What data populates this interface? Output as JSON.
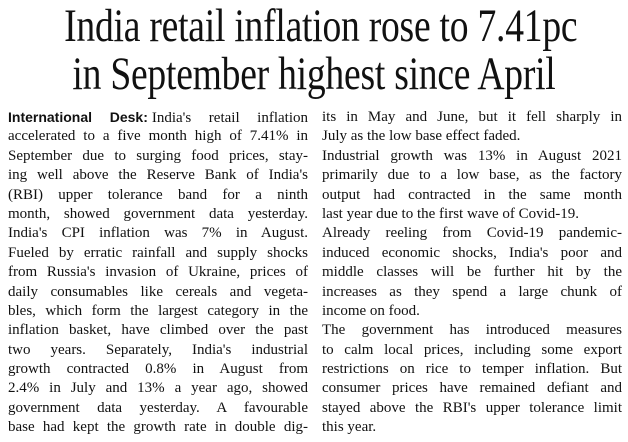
{
  "headline": {
    "lines": [
      "India retail inflation rose to 7.41pc",
      "in September highest since April"
    ]
  },
  "columns": [
    {
      "lead": "International Desk:",
      "paragraphs": [
        {
          "lines": [
            "India's retail inflation",
            "accelerated to a five month high of 7.41% in",
            "September due to surging food prices, stay-",
            "ing well above the Reserve Bank of India's",
            "(RBI) upper tolerance band for a ninth",
            "month, showed government data yesterday.",
            "India's CPI inflation was 7% in August.",
            "Fueled by erratic rainfall and supply shocks",
            "from Russia's invasion of Ukraine, prices of",
            "daily consumables like cereals and vegeta-",
            "bles, which form the largest category in the",
            "inflation basket, have climbed over the past",
            "two years. Separately, India's industrial",
            "growth contracted 0.8% in August from",
            "2.4% in July and 13% a year ago, showed",
            "government data yesterday. A favourable",
            "base had kept the growth rate in double dig-"
          ]
        }
      ]
    },
    {
      "paragraphs": [
        {
          "lines": [
            "its in May and June, but it fell sharply in",
            "July as the low base effect faded."
          ]
        },
        {
          "lines": [
            "Industrial growth was 13% in August 2021",
            "primarily due to a low base, as the factory",
            "output had contracted in the same month",
            "last year due to the first wave of Covid-19."
          ]
        },
        {
          "lines": [
            "Already reeling from Covid-19 pandemic-",
            "induced economic shocks, India's poor and",
            "middle classes will be further hit by the",
            "increases as they spend a large chunk of",
            "income on food."
          ]
        },
        {
          "lines": [
            "The government has introduced measures",
            "to calm local prices, including some export",
            "restrictions on rice to temper inflation. But",
            "consumer prices have remained defiant and",
            "stayed above the RBI's upper tolerance limit",
            "this year."
          ]
        }
      ]
    }
  ]
}
